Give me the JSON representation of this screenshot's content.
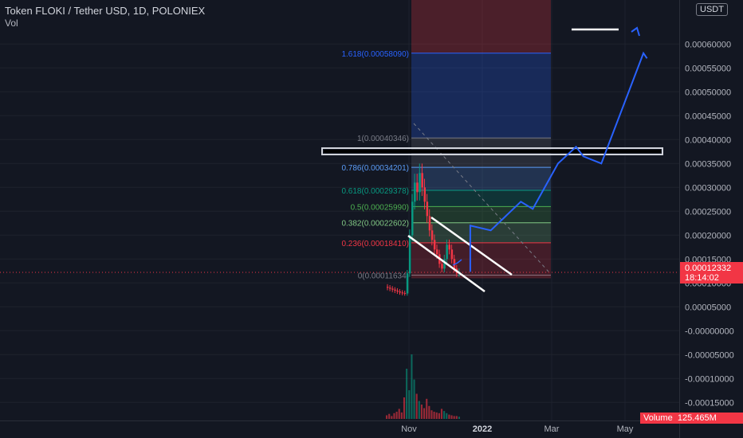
{
  "header": {
    "title": "Token FLOKI / Tether USD, 1D, POLONIEX",
    "volume_label": "Vol"
  },
  "axis": {
    "currency": "USDT",
    "price_ticks": [
      "0.00060000",
      "0.00055000",
      "0.00050000",
      "0.00045000",
      "0.00040000",
      "0.00035000",
      "0.00030000",
      "0.00025000",
      "0.00020000",
      "0.00015000",
      "0.00010000",
      "0.00005000",
      "-0.00000000",
      "-0.00005000",
      "-0.00010000",
      "-0.00015000"
    ],
    "time_ticks": [
      "Nov",
      "2022",
      "Mar",
      "May"
    ]
  },
  "last_price": {
    "price": "0.00012332",
    "countdown": "18:14:02"
  },
  "volume_badge": {
    "label": "Volume",
    "value": "125.465M"
  },
  "fib_levels": [
    {
      "label": "1.618(0.00058090)",
      "color": "#2962ff"
    },
    {
      "label": "1(0.00040346)",
      "color": "#787b86"
    },
    {
      "label": "0.786(0.00034201)",
      "color": "#5b9cf6"
    },
    {
      "label": "0.618(0.00029378)",
      "color": "#089981"
    },
    {
      "label": "0.5(0.00025990)",
      "color": "#4caf50"
    },
    {
      "label": "0.382(0.00022602)",
      "color": "#81c784"
    },
    {
      "label": "0.236(0.00018410)",
      "color": "#f23645"
    },
    {
      "label": "0(0.00011634)",
      "color": "#787b86"
    }
  ],
  "colors": {
    "up": "#089981",
    "down": "#f23645",
    "projection": "#2962ff",
    "background": "#131722"
  },
  "chart_data": {
    "type": "line",
    "title": "Token FLOKI / Tether USD, 1D, POLONIEX",
    "y_range": [
      -0.00015,
      0.0006
    ],
    "fib_values": [
      0.0005809,
      0.00040346,
      0.00034201,
      0.00029378,
      0.0002599,
      0.00022602,
      0.0001841,
      0.00011634
    ],
    "price_series": [
      9e-05,
      8.8e-05,
      8.6e-05,
      8.4e-05,
      8.2e-05,
      8e-05,
      7.9e-05,
      7.8e-05,
      0.00012,
      0.0002,
      0.00027,
      0.00031,
      0.00029,
      0.00033,
      0.0003,
      0.00027,
      0.00024,
      0.00021,
      0.00019,
      0.00017,
      0.00016,
      0.00014,
      0.00013,
      0.00015,
      0.00018,
      0.00017,
      0.00015,
      0.00013,
      0.00012,
      0.000123
    ],
    "volume_series": [
      5,
      7,
      4,
      8,
      10,
      14,
      9,
      30,
      70,
      40,
      90,
      55,
      35,
      25,
      20,
      15,
      28,
      18,
      12,
      10,
      9,
      8,
      14,
      11,
      8,
      6,
      5,
      4,
      4,
      3
    ],
    "projection_path": [
      {
        "date": "2021-12-22",
        "price": 0.00012332
      },
      {
        "date": "2021-12-22",
        "price": 0.00022
      },
      {
        "date": "2022-01-08",
        "price": 0.00021
      },
      {
        "date": "2022-02-02",
        "price": 0.00027
      },
      {
        "date": "2022-02-12",
        "price": 0.000255
      },
      {
        "date": "2022-03-05",
        "price": 0.00035
      },
      {
        "date": "2022-03-20",
        "price": 0.000385
      },
      {
        "date": "2022-03-26",
        "price": 0.000365
      },
      {
        "date": "2022-04-10",
        "price": 0.00035
      },
      {
        "date": "2022-05-15",
        "price": 0.0005809
      },
      {
        "date": "2022-05-18",
        "price": 0.00057
      }
    ]
  }
}
